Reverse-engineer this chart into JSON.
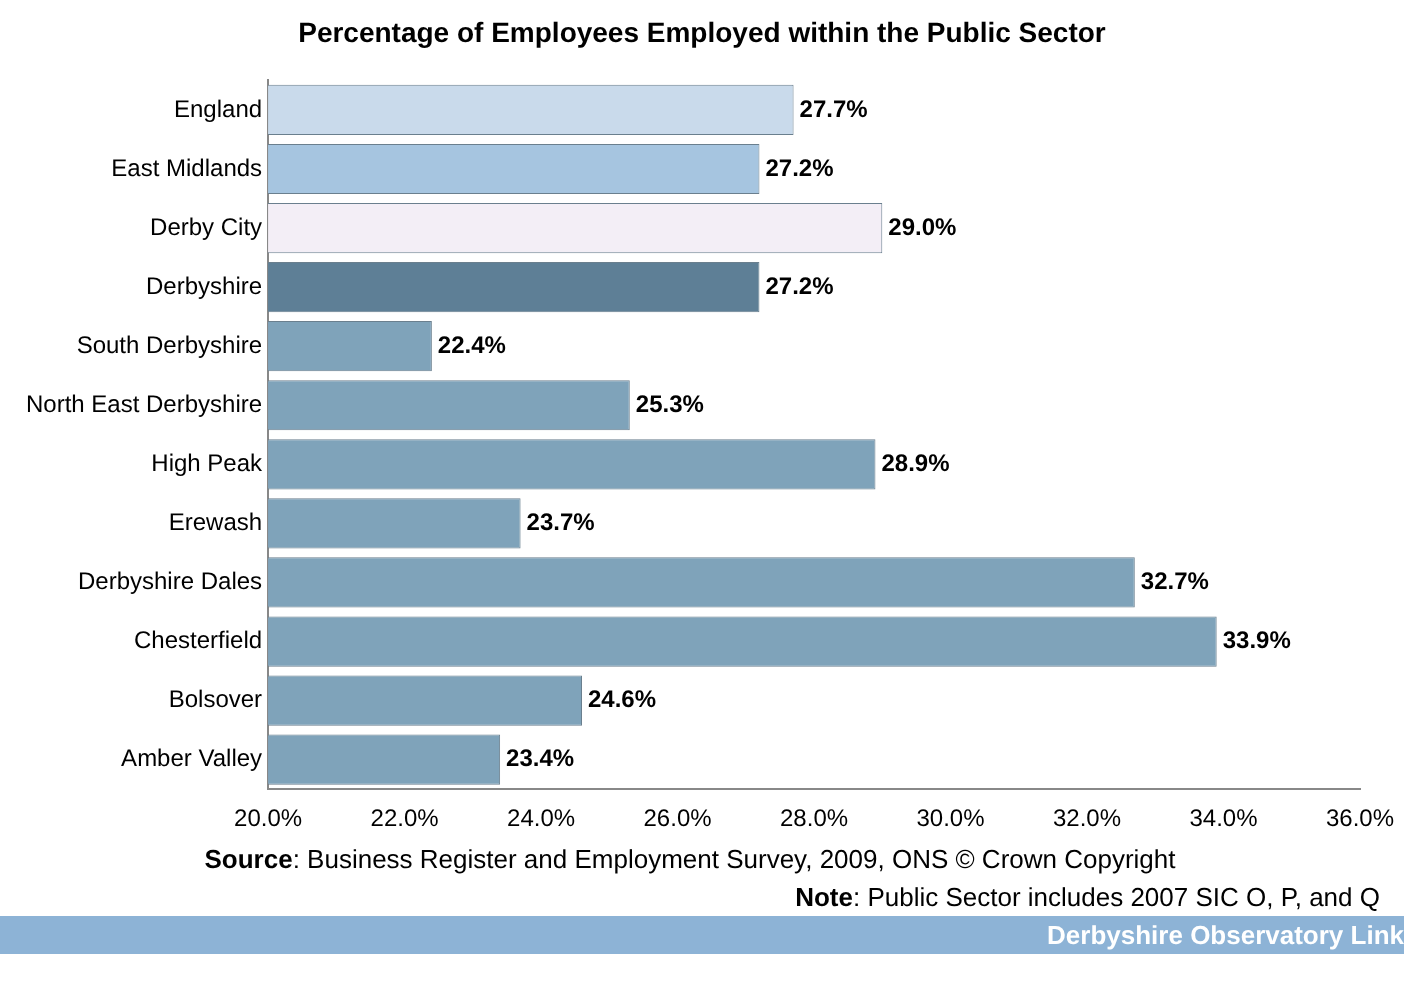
{
  "chart_data": {
    "type": "bar",
    "orientation": "horizontal",
    "title": "Percentage of Employees Employed within the Public Sector",
    "categories": [
      "England",
      "East Midlands",
      "Derby City",
      "Derbyshire",
      "South Derbyshire",
      "North East Derbyshire",
      "High Peak",
      "Erewash",
      "Derbyshire Dales",
      "Chesterfield",
      "Bolsover",
      "Amber Valley"
    ],
    "values": [
      27.7,
      27.2,
      29.0,
      27.2,
      22.4,
      25.3,
      28.9,
      23.7,
      32.7,
      33.9,
      24.6,
      23.4
    ],
    "colors": [
      "#c9daeb",
      "#a6c5e0",
      "#f3eef6",
      "#5e7f96",
      "#7fa3ba",
      "#7fa3ba",
      "#7fa3ba",
      "#7fa3ba",
      "#7fa3ba",
      "#7fa3ba",
      "#7fa3ba",
      "#7fa3ba"
    ],
    "value_labels": [
      "27.7%",
      "27.2%",
      "29.0%",
      "27.2%",
      "22.4%",
      "25.3%",
      "28.9%",
      "23.7%",
      "32.7%",
      "33.9%",
      "24.6%",
      "23.4%"
    ],
    "xlim": [
      20,
      36
    ],
    "xticks": [
      {
        "value": 20,
        "label": "20.0%"
      },
      {
        "value": 22,
        "label": "22.0%"
      },
      {
        "value": 24,
        "label": "24.0%"
      },
      {
        "value": 26,
        "label": "26.0%"
      },
      {
        "value": 28,
        "label": "28.0%"
      },
      {
        "value": 30,
        "label": "30.0%"
      },
      {
        "value": 32,
        "label": "32.0%"
      },
      {
        "value": 34,
        "label": "34.0%"
      },
      {
        "value": 36,
        "label": "36.0%"
      }
    ],
    "grid": false,
    "legend": false,
    "annotations": [
      "Source: Business Register and Employment Survey, 2009, ONS © Crown Copyright",
      "Note: Public Sector includes 2007 SIC O, P, and Q",
      "Derbyshire Observatory Link"
    ]
  }
}
